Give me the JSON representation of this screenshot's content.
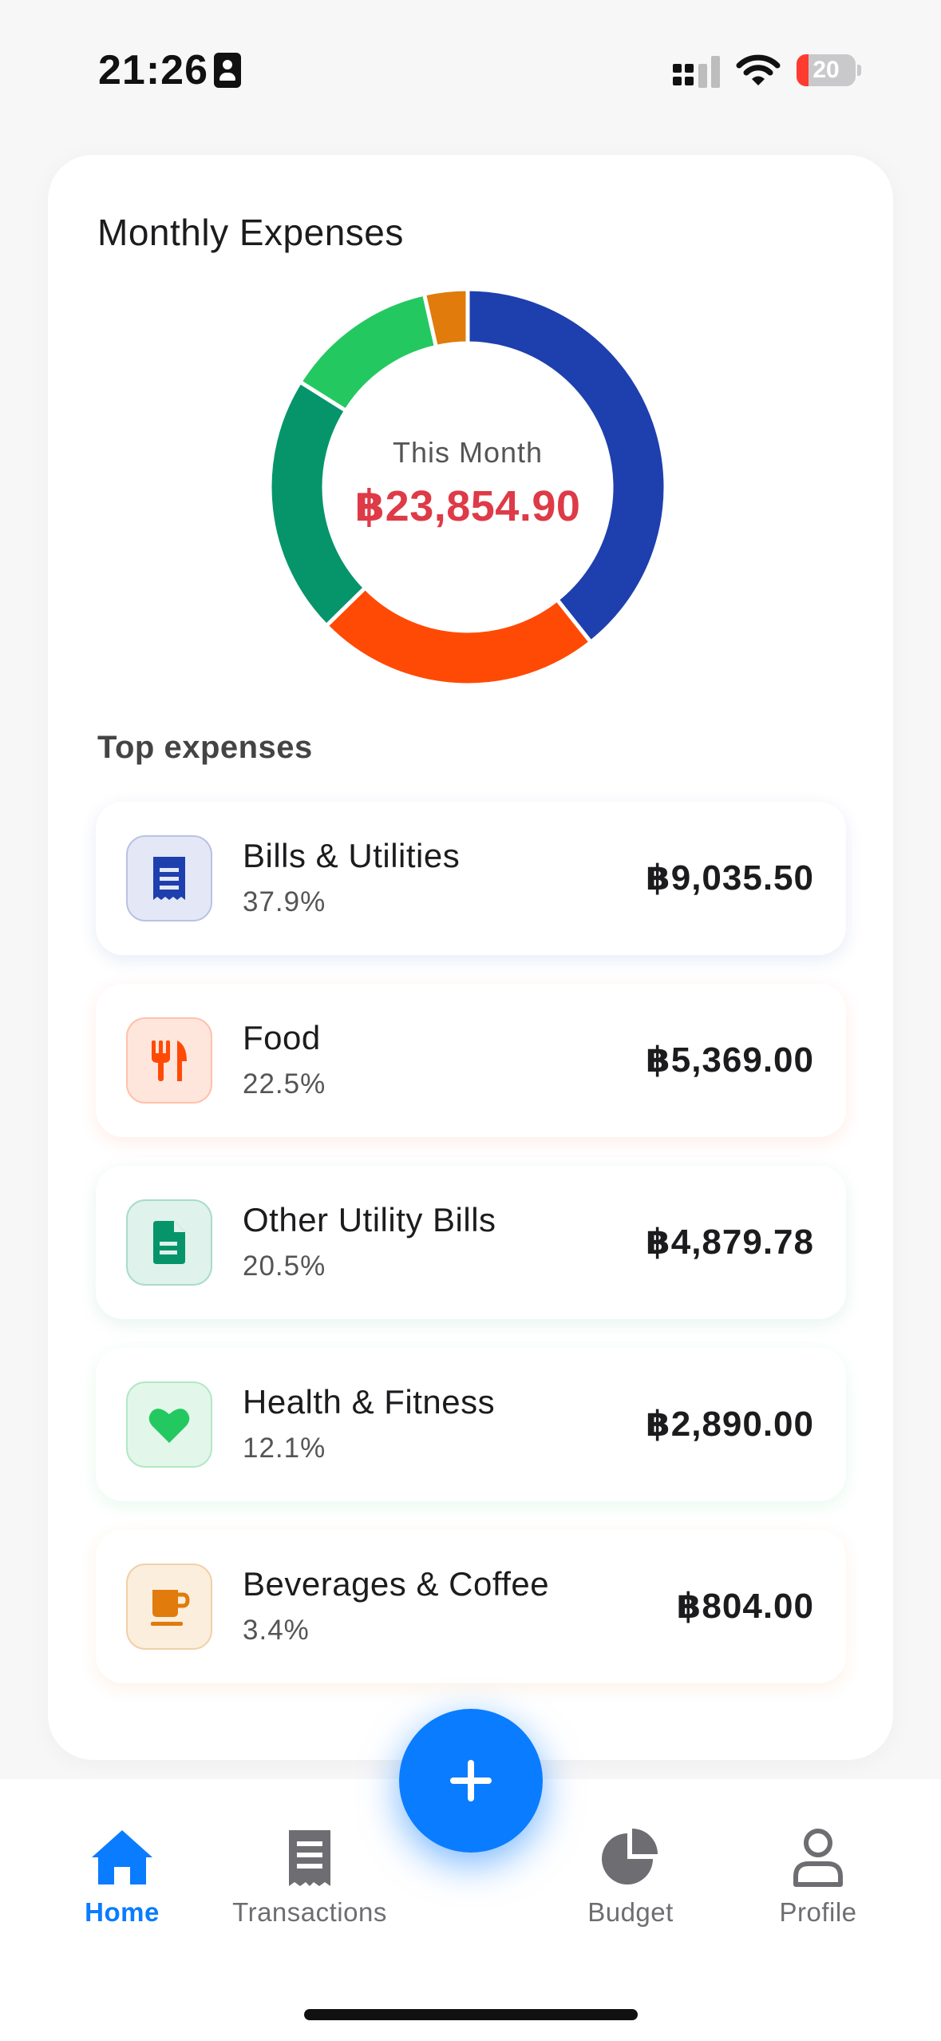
{
  "status_bar": {
    "time": "21:26",
    "battery": "20",
    "battery_level": 0.2
  },
  "card": {
    "title": "Monthly Expenses",
    "center_label": "This Month",
    "center_amount": "฿23,854.90",
    "section_title": "Top expenses"
  },
  "chart_data": {
    "type": "pie",
    "categories": [
      "Bills & Utilities",
      "Food",
      "Other Utility Bills",
      "Health & Fitness",
      "Beverages & Coffee"
    ],
    "values": [
      37.9,
      22.5,
      20.5,
      12.1,
      3.4
    ],
    "colors": [
      "#1e3fae",
      "#ff4a05",
      "#06956a",
      "#24c860",
      "#e07b0c"
    ],
    "donut": true
  },
  "expenses": [
    {
      "name": "Bills & Utilities",
      "percent": "37.9%",
      "amount": "฿9,035.50",
      "icon": "receipt-icon",
      "color": "#1e3fae",
      "bg": "#e4e8f6",
      "border": "#b9c2e4",
      "shadow": "rgba(30,63,174,0.10)"
    },
    {
      "name": "Food",
      "percent": "22.5%",
      "amount": "฿5,369.00",
      "icon": "utensils-icon",
      "color": "#ff4a05",
      "bg": "#ffe6dd",
      "border": "#ffc1aa",
      "shadow": "rgba(255,74,5,0.10)"
    },
    {
      "name": "Other Utility Bills",
      "percent": "20.5%",
      "amount": "฿4,879.78",
      "icon": "document-icon",
      "color": "#06956a",
      "bg": "#dff2eb",
      "border": "#a9dcc7",
      "shadow": "rgba(6,149,106,0.10)"
    },
    {
      "name": "Health & Fitness",
      "percent": "12.1%",
      "amount": "฿2,890.00",
      "icon": "heart-icon",
      "color": "#24c860",
      "bg": "#e2f7e9",
      "border": "#b1e8c4",
      "shadow": "rgba(36,200,96,0.10)"
    },
    {
      "name": "Beverages & Coffee",
      "percent": "3.4%",
      "amount": "฿804.00",
      "icon": "coffee-cup-icon",
      "color": "#e07b0c",
      "bg": "#fbeedd",
      "border": "#f1d0a8",
      "shadow": "rgba(224,123,12,0.10)"
    }
  ],
  "nav": {
    "home": "Home",
    "transactions": "Transactions",
    "budget": "Budget",
    "profile": "Profile",
    "active": "home",
    "active_color": "#0a7cff"
  }
}
